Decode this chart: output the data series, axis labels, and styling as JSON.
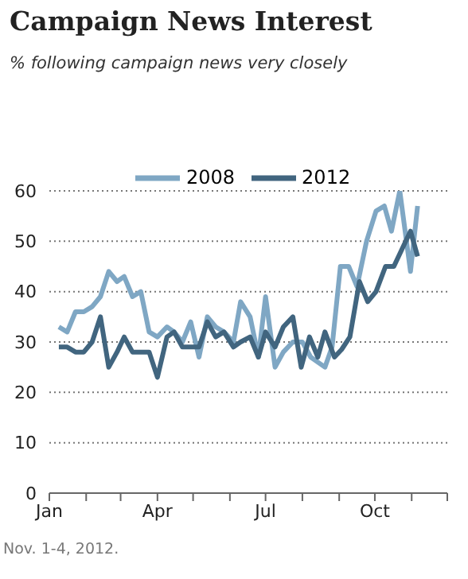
{
  "chart_data": {
    "type": "line",
    "title": "Campaign News Interest",
    "subtitle": "% following campaign news very closely",
    "xlim": [
      "--01-01",
      "--12-01"
    ],
    "xticks": [
      {
        "value": "--01-01",
        "label": "Jan"
      },
      {
        "value": "--02-01",
        "label": null
      },
      {
        "value": "--03-01",
        "label": null
      },
      {
        "value": "--04-01",
        "label": "Apr"
      },
      {
        "value": "--05-01",
        "label": null
      },
      {
        "value": "--06-01",
        "label": null
      },
      {
        "value": "--07-01",
        "label": "Jul"
      },
      {
        "value": "--08-01",
        "label": null
      },
      {
        "value": "--09-01",
        "label": null
      },
      {
        "value": "--10-01",
        "label": "Oct"
      },
      {
        "value": "--11-01",
        "label": null
      },
      {
        "value": "--12-01",
        "label": null
      }
    ],
    "ylim": [
      0,
      60
    ],
    "yticks": [
      0,
      10,
      20,
      30,
      40,
      50,
      60
    ],
    "grid": "y",
    "legend": "top",
    "marker": "none",
    "line_style": "solid",
    "series": [
      {
        "name": "2008",
        "color": "#7fa7c4",
        "x": [
          "--01-09",
          "--01-16",
          "--01-23",
          "--01-30",
          "--02-06",
          "--02-13",
          "--02-20",
          "--02-27",
          "--03-04",
          "--03-11",
          "--03-18",
          "--03-25",
          "--04-01",
          "--04-09",
          "--04-15",
          "--04-22",
          "--04-29",
          "--05-06",
          "--05-13",
          "--05-20",
          "--05-27",
          "--06-04",
          "--06-10",
          "--06-18",
          "--06-25",
          "--07-01",
          "--07-09",
          "--07-16",
          "--07-24",
          "--08-01",
          "--08-08",
          "--08-14",
          "--08-20",
          "--08-26",
          "--09-02",
          "--09-09",
          "--09-16",
          "--09-24",
          "--10-02",
          "--10-09",
          "--10-15",
          "--10-22",
          "--10-31",
          "--11-06"
        ],
        "values": [
          33,
          32,
          36,
          36,
          37,
          39,
          44,
          42,
          43,
          39,
          40,
          32,
          31,
          33,
          32,
          30,
          34,
          27,
          35,
          33,
          32,
          30,
          38,
          35,
          27,
          39,
          25,
          28,
          30,
          30,
          27,
          26,
          25,
          29,
          45,
          45,
          41,
          50,
          56,
          57,
          52,
          60,
          44,
          57
        ]
      },
      {
        "name": "2012",
        "color": "#41657f",
        "x": [
          "--01-09",
          "--01-16",
          "--01-23",
          "--01-30",
          "--02-06",
          "--02-13",
          "--02-20",
          "--02-27",
          "--03-04",
          "--03-11",
          "--03-18",
          "--03-25",
          "--04-01",
          "--04-09",
          "--04-15",
          "--04-22",
          "--04-29",
          "--05-06",
          "--05-13",
          "--05-20",
          "--05-27",
          "--06-04",
          "--06-10",
          "--06-18",
          "--06-25",
          "--07-01",
          "--07-09",
          "--07-16",
          "--07-24",
          "--07-31",
          "--08-07",
          "--08-14",
          "--08-20",
          "--08-28",
          "--09-03",
          "--09-10",
          "--09-18",
          "--09-25",
          "--10-02",
          "--10-10",
          "--10-17",
          "--10-23",
          "--10-31",
          "--11-06"
        ],
        "values": [
          29,
          29,
          28,
          28,
          30,
          35,
          25,
          28,
          31,
          28,
          28,
          28,
          23,
          31,
          32,
          29,
          29,
          29,
          34,
          31,
          32,
          29,
          30,
          31,
          27,
          32,
          29,
          33,
          35,
          25,
          31,
          27,
          32,
          27,
          28.5,
          31,
          42,
          38,
          40,
          45,
          45,
          48,
          52,
          47
        ]
      }
    ],
    "annotations": [
      "Nov. 1-4, 2012."
    ]
  }
}
